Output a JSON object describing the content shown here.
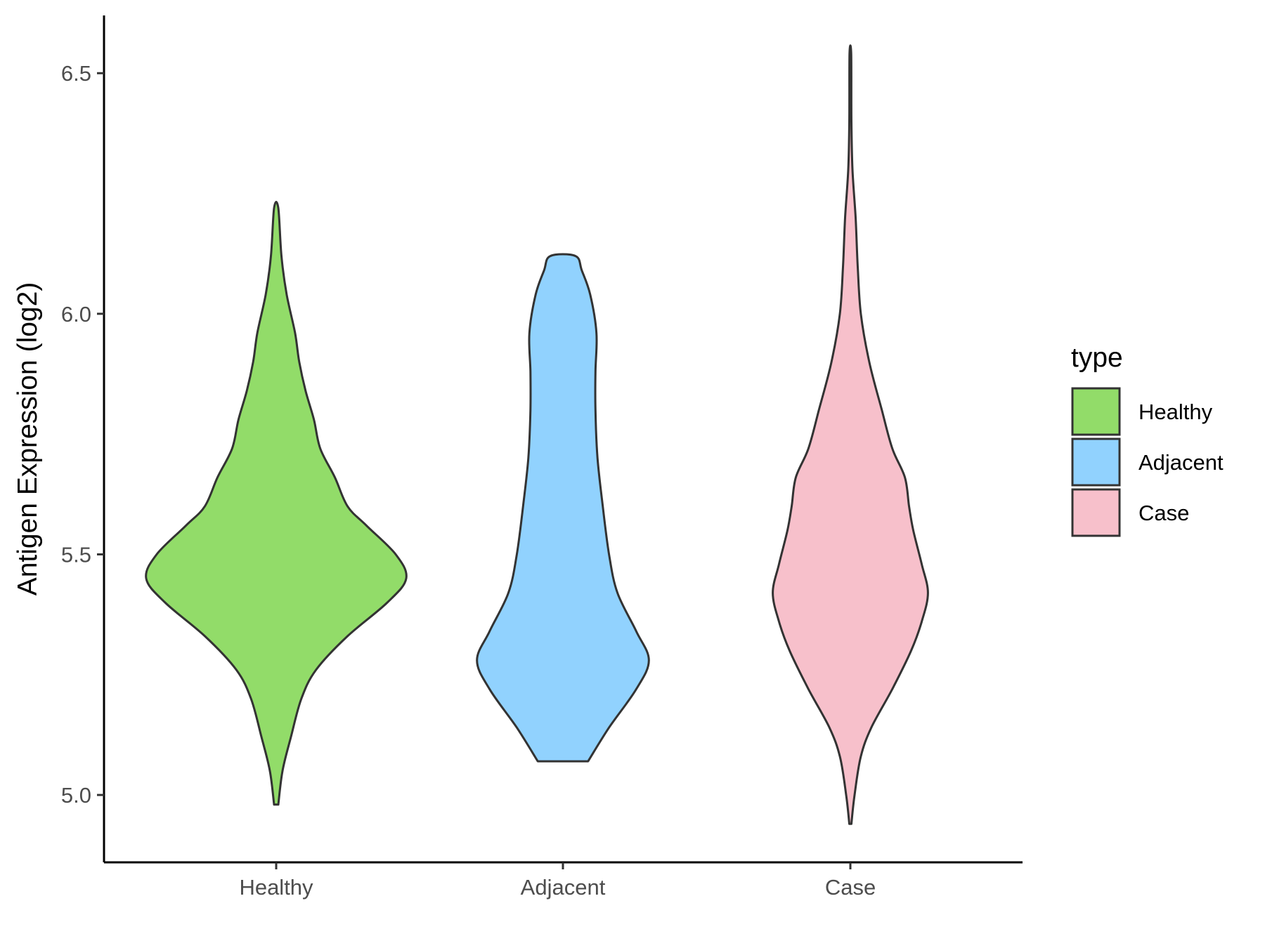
{
  "chart_data": {
    "type": "violin",
    "ylabel": "Antigen Expression (log2)",
    "xlabel": "",
    "categories": [
      "Healthy",
      "Adjacent",
      "Case"
    ],
    "ylim": [
      4.86,
      6.62
    ],
    "yticks": [
      5.0,
      5.5,
      6.0,
      6.5
    ],
    "ytick_labels": [
      "5.0",
      "5.5",
      "6.0",
      "6.5"
    ],
    "grid": false,
    "legend": {
      "title": "type",
      "placement": "right",
      "entries": [
        {
          "label": "Healthy",
          "color": "#92dc69"
        },
        {
          "label": "Adjacent",
          "color": "#91d2fe"
        },
        {
          "label": "Case",
          "color": "#f7c0cb"
        }
      ]
    },
    "series": [
      {
        "category": "Healthy",
        "color": "#92dc69",
        "min": 4.98,
        "max": 6.22,
        "profile": [
          [
            4.98,
            0.01
          ],
          [
            5.05,
            0.03
          ],
          [
            5.12,
            0.07
          ],
          [
            5.2,
            0.12
          ],
          [
            5.26,
            0.19
          ],
          [
            5.33,
            0.34
          ],
          [
            5.4,
            0.53
          ],
          [
            5.45,
            0.62
          ],
          [
            5.5,
            0.57
          ],
          [
            5.56,
            0.43
          ],
          [
            5.6,
            0.34
          ],
          [
            5.66,
            0.28
          ],
          [
            5.72,
            0.21
          ],
          [
            5.78,
            0.18
          ],
          [
            5.84,
            0.14
          ],
          [
            5.9,
            0.11
          ],
          [
            5.96,
            0.09
          ],
          [
            6.04,
            0.05
          ],
          [
            6.12,
            0.025
          ],
          [
            6.22,
            0.01
          ]
        ]
      },
      {
        "category": "Adjacent",
        "color": "#91d2fe",
        "min": 5.07,
        "max": 6.12,
        "profile": [
          [
            5.07,
            0.12
          ],
          [
            5.14,
            0.22
          ],
          [
            5.22,
            0.35
          ],
          [
            5.28,
            0.41
          ],
          [
            5.34,
            0.35
          ],
          [
            5.42,
            0.26
          ],
          [
            5.5,
            0.22
          ],
          [
            5.6,
            0.19
          ],
          [
            5.7,
            0.165
          ],
          [
            5.8,
            0.155
          ],
          [
            5.88,
            0.155
          ],
          [
            5.96,
            0.16
          ],
          [
            6.04,
            0.13
          ],
          [
            6.09,
            0.09
          ],
          [
            6.12,
            0.06
          ]
        ]
      },
      {
        "category": "Case",
        "color": "#f7c0cb",
        "min": 4.94,
        "max": 6.54,
        "profile": [
          [
            4.94,
            0.005
          ],
          [
            5.0,
            0.02
          ],
          [
            5.08,
            0.05
          ],
          [
            5.14,
            0.1
          ],
          [
            5.22,
            0.2
          ],
          [
            5.3,
            0.29
          ],
          [
            5.36,
            0.34
          ],
          [
            5.42,
            0.37
          ],
          [
            5.48,
            0.34
          ],
          [
            5.55,
            0.3
          ],
          [
            5.6,
            0.28
          ],
          [
            5.66,
            0.26
          ],
          [
            5.72,
            0.2
          ],
          [
            5.8,
            0.15
          ],
          [
            5.9,
            0.09
          ],
          [
            6.0,
            0.05
          ],
          [
            6.1,
            0.035
          ],
          [
            6.2,
            0.025
          ],
          [
            6.3,
            0.01
          ],
          [
            6.4,
            0.005
          ],
          [
            6.54,
            0.004
          ]
        ]
      }
    ]
  }
}
